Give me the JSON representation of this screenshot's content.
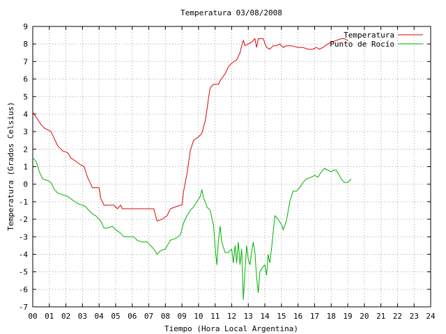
{
  "chart_data": {
    "type": "line",
    "title": "Temperatura 03/08/2008",
    "xlabel": "Tiempo (Hora Local Argentina)",
    "ylabel": "Temperatura (Grados Celsius)",
    "xlim": [
      0,
      24
    ],
    "ylim": [
      -7,
      9
    ],
    "x_ticks": [
      0,
      1,
      2,
      3,
      4,
      5,
      6,
      7,
      8,
      9,
      10,
      11,
      12,
      13,
      14,
      15,
      16,
      17,
      18,
      19,
      20,
      21,
      22,
      23,
      24
    ],
    "x_tick_labels": [
      "00",
      "01",
      "02",
      "03",
      "04",
      "05",
      "06",
      "07",
      "08",
      "09",
      "10",
      "11",
      "12",
      "13",
      "14",
      "15",
      "16",
      "17",
      "18",
      "19",
      "20",
      "21",
      "22",
      "23",
      "24"
    ],
    "y_ticks": [
      -7,
      -6,
      -5,
      -4,
      -3,
      -2,
      -1,
      0,
      1,
      2,
      3,
      4,
      5,
      6,
      7,
      8,
      9
    ],
    "grid": true,
    "legend_position": "top-right",
    "series": [
      {
        "name": "Temperatura",
        "color": "#e00000",
        "points": [
          [
            0.0,
            4.1
          ],
          [
            0.3,
            3.7
          ],
          [
            0.5,
            3.4
          ],
          [
            0.7,
            3.2
          ],
          [
            0.9,
            3.1
          ],
          [
            1.1,
            3.0
          ],
          [
            1.3,
            2.6
          ],
          [
            1.5,
            2.2
          ],
          [
            1.8,
            1.9
          ],
          [
            2.1,
            1.8
          ],
          [
            2.3,
            1.5
          ],
          [
            2.6,
            1.3
          ],
          [
            2.9,
            1.1
          ],
          [
            3.1,
            1.0
          ],
          [
            3.3,
            0.4
          ],
          [
            3.5,
            0.0
          ],
          [
            3.6,
            -0.2
          ],
          [
            3.8,
            -0.2
          ],
          [
            4.0,
            -0.2
          ],
          [
            4.1,
            -0.8
          ],
          [
            4.3,
            -1.2
          ],
          [
            4.6,
            -1.2
          ],
          [
            4.9,
            -1.2
          ],
          [
            5.1,
            -1.4
          ],
          [
            5.3,
            -1.2
          ],
          [
            5.4,
            -1.4
          ],
          [
            5.6,
            -1.4
          ],
          [
            6.0,
            -1.4
          ],
          [
            6.5,
            -1.4
          ],
          [
            7.0,
            -1.4
          ],
          [
            7.3,
            -1.4
          ],
          [
            7.5,
            -2.1
          ],
          [
            7.8,
            -2.0
          ],
          [
            8.1,
            -1.8
          ],
          [
            8.3,
            -1.4
          ],
          [
            8.6,
            -1.3
          ],
          [
            8.9,
            -1.2
          ],
          [
            9.0,
            -1.2
          ],
          [
            9.1,
            -0.4
          ],
          [
            9.3,
            0.6
          ],
          [
            9.5,
            1.9
          ],
          [
            9.7,
            2.5
          ],
          [
            10.0,
            2.7
          ],
          [
            10.2,
            2.9
          ],
          [
            10.4,
            3.6
          ],
          [
            10.5,
            4.2
          ],
          [
            10.6,
            4.9
          ],
          [
            10.7,
            5.5
          ],
          [
            10.9,
            5.7
          ],
          [
            11.2,
            5.7
          ],
          [
            11.3,
            5.9
          ],
          [
            11.6,
            6.3
          ],
          [
            11.8,
            6.7
          ],
          [
            12.0,
            6.9
          ],
          [
            12.3,
            7.1
          ],
          [
            12.5,
            7.5
          ],
          [
            12.6,
            7.9
          ],
          [
            12.7,
            8.2
          ],
          [
            12.8,
            7.9
          ],
          [
            13.0,
            8.0
          ],
          [
            13.2,
            8.1
          ],
          [
            13.3,
            8.2
          ],
          [
            13.4,
            8.3
          ],
          [
            13.5,
            7.8
          ],
          [
            13.6,
            8.3
          ],
          [
            13.9,
            8.3
          ],
          [
            14.1,
            7.8
          ],
          [
            14.3,
            7.7
          ],
          [
            14.5,
            7.9
          ],
          [
            14.7,
            7.9
          ],
          [
            14.9,
            8.0
          ],
          [
            15.1,
            7.8
          ],
          [
            15.3,
            7.9
          ],
          [
            15.6,
            7.9
          ],
          [
            16.0,
            7.8
          ],
          [
            16.3,
            7.8
          ],
          [
            16.6,
            7.7
          ],
          [
            16.9,
            7.7
          ],
          [
            17.1,
            7.8
          ],
          [
            17.3,
            7.7
          ],
          [
            17.5,
            7.8
          ],
          [
            17.8,
            8.0
          ],
          [
            18.0,
            8.1
          ],
          [
            18.3,
            8.2
          ],
          [
            18.6,
            8.3
          ],
          [
            18.8,
            8.3
          ],
          [
            19.0,
            8.2
          ]
        ]
      },
      {
        "name": "Punto de Rocío",
        "color": "#00b000",
        "points": [
          [
            0.0,
            1.5
          ],
          [
            0.2,
            1.3
          ],
          [
            0.4,
            0.7
          ],
          [
            0.6,
            0.3
          ],
          [
            0.9,
            0.2
          ],
          [
            1.1,
            0.1
          ],
          [
            1.3,
            -0.3
          ],
          [
            1.5,
            -0.5
          ],
          [
            1.8,
            -0.6
          ],
          [
            2.1,
            -0.7
          ],
          [
            2.4,
            -0.9
          ],
          [
            2.7,
            -1.1
          ],
          [
            3.0,
            -1.2
          ],
          [
            3.2,
            -1.3
          ],
          [
            3.4,
            -1.5
          ],
          [
            3.6,
            -1.7
          ],
          [
            3.8,
            -1.8
          ],
          [
            4.1,
            -2.1
          ],
          [
            4.3,
            -2.5
          ],
          [
            4.5,
            -2.5
          ],
          [
            4.8,
            -2.4
          ],
          [
            5.0,
            -2.6
          ],
          [
            5.3,
            -2.8
          ],
          [
            5.5,
            -3.0
          ],
          [
            5.8,
            -3.0
          ],
          [
            6.1,
            -3.0
          ],
          [
            6.3,
            -3.2
          ],
          [
            6.6,
            -3.3
          ],
          [
            6.9,
            -3.3
          ],
          [
            7.1,
            -3.5
          ],
          [
            7.3,
            -3.7
          ],
          [
            7.5,
            -4.0
          ],
          [
            7.7,
            -3.8
          ],
          [
            8.0,
            -3.7
          ],
          [
            8.3,
            -3.2
          ],
          [
            8.6,
            -3.1
          ],
          [
            8.9,
            -2.9
          ],
          [
            9.1,
            -2.2
          ],
          [
            9.3,
            -1.8
          ],
          [
            9.5,
            -1.5
          ],
          [
            9.7,
            -1.3
          ],
          [
            9.9,
            -1.0
          ],
          [
            10.1,
            -0.7
          ],
          [
            10.2,
            -0.3
          ],
          [
            10.3,
            -0.8
          ],
          [
            10.4,
            -1.0
          ],
          [
            10.5,
            -1.3
          ],
          [
            10.7,
            -1.5
          ],
          [
            10.9,
            -2.3
          ],
          [
            11.0,
            -3.6
          ],
          [
            11.1,
            -4.6
          ],
          [
            11.2,
            -3.2
          ],
          [
            11.3,
            -2.4
          ],
          [
            11.4,
            -3.3
          ],
          [
            11.6,
            -3.9
          ],
          [
            11.8,
            -3.9
          ],
          [
            12.0,
            -3.7
          ],
          [
            12.1,
            -4.5
          ],
          [
            12.2,
            -3.5
          ],
          [
            12.3,
            -4.5
          ],
          [
            12.4,
            -3.3
          ],
          [
            12.5,
            -4.6
          ],
          [
            12.6,
            -3.7
          ],
          [
            12.7,
            -6.6
          ],
          [
            12.8,
            -5.0
          ],
          [
            12.9,
            -3.5
          ],
          [
            13.0,
            -4.3
          ],
          [
            13.1,
            -4.6
          ],
          [
            13.2,
            -3.9
          ],
          [
            13.3,
            -3.3
          ],
          [
            13.4,
            -3.9
          ],
          [
            13.5,
            -5.3
          ],
          [
            13.6,
            -6.2
          ],
          [
            13.7,
            -5.0
          ],
          [
            13.9,
            -4.7
          ],
          [
            14.0,
            -4.6
          ],
          [
            14.1,
            -5.2
          ],
          [
            14.2,
            -4.0
          ],
          [
            14.3,
            -4.5
          ],
          [
            14.4,
            -3.7
          ],
          [
            14.6,
            -1.8
          ],
          [
            14.8,
            -2.0
          ],
          [
            15.0,
            -2.3
          ],
          [
            15.1,
            -2.6
          ],
          [
            15.3,
            -2.1
          ],
          [
            15.5,
            -1.0
          ],
          [
            15.7,
            -0.4
          ],
          [
            15.9,
            -0.4
          ],
          [
            16.1,
            -0.2
          ],
          [
            16.3,
            0.1
          ],
          [
            16.5,
            0.3
          ],
          [
            16.8,
            0.4
          ],
          [
            17.0,
            0.5
          ],
          [
            17.2,
            0.4
          ],
          [
            17.4,
            0.7
          ],
          [
            17.6,
            0.9
          ],
          [
            17.8,
            0.8
          ],
          [
            18.0,
            0.7
          ],
          [
            18.1,
            0.8
          ],
          [
            18.3,
            0.8
          ],
          [
            18.5,
            0.5
          ],
          [
            18.6,
            0.3
          ],
          [
            18.8,
            0.1
          ],
          [
            19.0,
            0.1
          ],
          [
            19.2,
            0.3
          ]
        ]
      }
    ]
  }
}
